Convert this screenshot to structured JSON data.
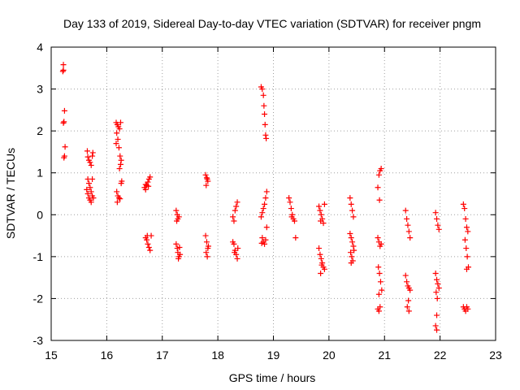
{
  "chart_data": {
    "type": "scatter",
    "title": "Day 133 of 2019, Sidereal Day-to-day VTEC variation (SDTVAR) for receiver pngm",
    "xlabel": "GPS time / hours",
    "ylabel": "SDTVAR / TECUs",
    "xlim": [
      15,
      23
    ],
    "ylim": [
      -3,
      4
    ],
    "xticks": [
      "15",
      "16",
      "17",
      "18",
      "19",
      "20",
      "21",
      "22",
      "23"
    ],
    "yticks": [
      "4",
      "3",
      "2",
      "1",
      "0",
      "-1",
      "-2",
      "-3"
    ],
    "grid": true,
    "marker": "+",
    "series_color": "#ff0000",
    "series": [
      {
        "name": "SDTVAR",
        "points": [
          [
            15.22,
            3.58
          ],
          [
            15.22,
            3.45
          ],
          [
            15.21,
            3.42
          ],
          [
            15.24,
            2.48
          ],
          [
            15.23,
            2.22
          ],
          [
            15.22,
            2.19
          ],
          [
            15.25,
            1.62
          ],
          [
            15.24,
            1.4
          ],
          [
            15.23,
            1.36
          ],
          [
            15.65,
            1.52
          ],
          [
            15.66,
            1.38
          ],
          [
            15.68,
            1.3
          ],
          [
            15.7,
            1.25
          ],
          [
            15.72,
            1.18
          ],
          [
            15.75,
            1.48
          ],
          [
            15.74,
            1.4
          ],
          [
            15.66,
            0.85
          ],
          [
            15.68,
            0.75
          ],
          [
            15.7,
            0.65
          ],
          [
            15.72,
            0.55
          ],
          [
            15.74,
            0.45
          ],
          [
            15.68,
            0.4
          ],
          [
            15.7,
            0.35
          ],
          [
            15.72,
            0.3
          ],
          [
            15.66,
            0.5
          ],
          [
            15.74,
            0.85
          ],
          [
            15.76,
            0.4
          ],
          [
            15.64,
            0.6
          ],
          [
            16.17,
            2.2
          ],
          [
            16.19,
            2.15
          ],
          [
            16.21,
            2.1
          ],
          [
            16.23,
            2.05
          ],
          [
            16.25,
            2.2
          ],
          [
            16.18,
            1.95
          ],
          [
            16.2,
            1.8
          ],
          [
            16.17,
            1.7
          ],
          [
            16.22,
            1.6
          ],
          [
            16.24,
            1.4
          ],
          [
            16.26,
            1.3
          ],
          [
            16.25,
            1.2
          ],
          [
            16.23,
            1.1
          ],
          [
            16.18,
            0.55
          ],
          [
            16.2,
            0.45
          ],
          [
            16.22,
            0.4
          ],
          [
            16.24,
            0.38
          ],
          [
            16.19,
            0.3
          ],
          [
            16.26,
            0.75
          ],
          [
            16.27,
            0.8
          ],
          [
            16.68,
            0.65
          ],
          [
            16.7,
            0.72
          ],
          [
            16.72,
            0.7
          ],
          [
            16.74,
            0.78
          ],
          [
            16.76,
            0.85
          ],
          [
            16.78,
            0.9
          ],
          [
            16.7,
            0.6
          ],
          [
            16.75,
            0.68
          ],
          [
            16.7,
            -0.55
          ],
          [
            16.72,
            -0.6
          ],
          [
            16.74,
            -0.7
          ],
          [
            16.76,
            -0.78
          ],
          [
            16.78,
            -0.85
          ],
          [
            16.73,
            -0.5
          ],
          [
            16.8,
            -0.5
          ],
          [
            17.25,
            0.1
          ],
          [
            17.27,
            0.0
          ],
          [
            17.28,
            -0.1
          ],
          [
            17.3,
            -0.05
          ],
          [
            17.26,
            -0.15
          ],
          [
            17.25,
            -0.7
          ],
          [
            17.27,
            -0.8
          ],
          [
            17.28,
            -0.9
          ],
          [
            17.3,
            -1.0
          ],
          [
            17.29,
            -1.05
          ],
          [
            17.32,
            -0.95
          ],
          [
            17.31,
            -0.78
          ],
          [
            17.78,
            0.95
          ],
          [
            17.8,
            0.88
          ],
          [
            17.82,
            0.8
          ],
          [
            17.79,
            0.7
          ],
          [
            17.81,
            0.85
          ],
          [
            17.78,
            -0.5
          ],
          [
            17.8,
            -0.65
          ],
          [
            17.82,
            -0.8
          ],
          [
            17.79,
            -0.9
          ],
          [
            17.81,
            -1.0
          ],
          [
            17.83,
            -0.75
          ],
          [
            18.27,
            -0.05
          ],
          [
            18.29,
            -0.15
          ],
          [
            18.31,
            0.1
          ],
          [
            18.33,
            0.2
          ],
          [
            18.35,
            0.3
          ],
          [
            18.27,
            -0.65
          ],
          [
            18.29,
            -0.7
          ],
          [
            18.31,
            -0.85
          ],
          [
            18.33,
            -0.95
          ],
          [
            18.35,
            -1.05
          ],
          [
            18.3,
            -0.9
          ],
          [
            18.36,
            -0.8
          ],
          [
            18.78,
            3.05
          ],
          [
            18.8,
            3.0
          ],
          [
            18.82,
            2.85
          ],
          [
            18.83,
            2.6
          ],
          [
            18.84,
            2.4
          ],
          [
            18.85,
            2.15
          ],
          [
            18.86,
            1.9
          ],
          [
            18.87,
            1.82
          ],
          [
            18.78,
            -0.05
          ],
          [
            18.8,
            0.05
          ],
          [
            18.82,
            0.15
          ],
          [
            18.84,
            0.25
          ],
          [
            18.86,
            0.4
          ],
          [
            18.88,
            0.55
          ],
          [
            18.8,
            -0.55
          ],
          [
            18.82,
            -0.65
          ],
          [
            18.84,
            -0.7
          ],
          [
            18.86,
            -0.6
          ],
          [
            18.88,
            -0.3
          ],
          [
            18.79,
            -0.68
          ],
          [
            19.28,
            0.4
          ],
          [
            19.3,
            0.3
          ],
          [
            19.32,
            0.15
          ],
          [
            19.34,
            0.0
          ],
          [
            19.36,
            -0.1
          ],
          [
            19.38,
            -0.15
          ],
          [
            19.33,
            -0.05
          ],
          [
            19.4,
            -0.55
          ],
          [
            19.82,
            0.2
          ],
          [
            19.84,
            0.1
          ],
          [
            19.86,
            0.0
          ],
          [
            19.88,
            -0.1
          ],
          [
            19.9,
            -0.2
          ],
          [
            19.92,
            0.25
          ],
          [
            19.85,
            -0.15
          ],
          [
            19.82,
            -0.8
          ],
          [
            19.84,
            -0.95
          ],
          [
            19.86,
            -1.05
          ],
          [
            19.88,
            -1.15
          ],
          [
            19.9,
            -1.25
          ],
          [
            19.92,
            -1.3
          ],
          [
            19.85,
            -1.4
          ],
          [
            19.87,
            -1.2
          ],
          [
            20.38,
            0.4
          ],
          [
            20.4,
            0.25
          ],
          [
            20.42,
            0.1
          ],
          [
            20.44,
            -0.05
          ],
          [
            20.38,
            -0.45
          ],
          [
            20.4,
            -0.55
          ],
          [
            20.42,
            -0.65
          ],
          [
            20.44,
            -0.75
          ],
          [
            20.39,
            -0.9
          ],
          [
            20.41,
            -1.0
          ],
          [
            20.43,
            -1.1
          ],
          [
            20.4,
            -1.15
          ],
          [
            20.45,
            -0.85
          ],
          [
            20.88,
            0.65
          ],
          [
            20.9,
            0.95
          ],
          [
            20.92,
            1.05
          ],
          [
            20.94,
            1.1
          ],
          [
            20.91,
            0.35
          ],
          [
            20.88,
            -0.55
          ],
          [
            20.9,
            -0.65
          ],
          [
            20.92,
            -0.75
          ],
          [
            20.94,
            -0.7
          ],
          [
            20.89,
            -1.25
          ],
          [
            20.91,
            -1.4
          ],
          [
            20.93,
            -1.6
          ],
          [
            20.95,
            -1.8
          ],
          [
            20.9,
            -1.9
          ],
          [
            20.88,
            -2.25
          ],
          [
            20.9,
            -2.3
          ],
          [
            20.92,
            -2.2
          ],
          [
            21.38,
            0.1
          ],
          [
            21.4,
            -0.1
          ],
          [
            21.42,
            -0.25
          ],
          [
            21.44,
            -0.4
          ],
          [
            21.46,
            -0.55
          ],
          [
            21.38,
            -1.45
          ],
          [
            21.4,
            -1.6
          ],
          [
            21.42,
            -1.7
          ],
          [
            21.44,
            -1.75
          ],
          [
            21.46,
            -1.8
          ],
          [
            21.43,
            -2.05
          ],
          [
            21.41,
            -2.2
          ],
          [
            21.44,
            -2.3
          ],
          [
            21.92,
            0.05
          ],
          [
            21.94,
            -0.1
          ],
          [
            21.96,
            -0.25
          ],
          [
            21.98,
            -0.35
          ],
          [
            21.92,
            -1.4
          ],
          [
            21.94,
            -1.55
          ],
          [
            21.96,
            -1.65
          ],
          [
            21.98,
            -1.75
          ],
          [
            21.93,
            -1.85
          ],
          [
            21.95,
            -2.0
          ],
          [
            21.94,
            -2.4
          ],
          [
            21.92,
            -2.65
          ],
          [
            21.94,
            -2.75
          ],
          [
            22.42,
            0.25
          ],
          [
            22.44,
            0.15
          ],
          [
            22.46,
            -0.1
          ],
          [
            22.48,
            -0.3
          ],
          [
            22.5,
            -0.4
          ],
          [
            22.45,
            -0.6
          ],
          [
            22.47,
            -0.8
          ],
          [
            22.49,
            -1.0
          ],
          [
            22.51,
            -1.25
          ],
          [
            22.48,
            -1.3
          ],
          [
            22.42,
            -2.2
          ],
          [
            22.44,
            -2.25
          ],
          [
            22.46,
            -2.3
          ],
          [
            22.48,
            -2.2
          ],
          [
            22.5,
            -2.25
          ]
        ]
      }
    ]
  }
}
